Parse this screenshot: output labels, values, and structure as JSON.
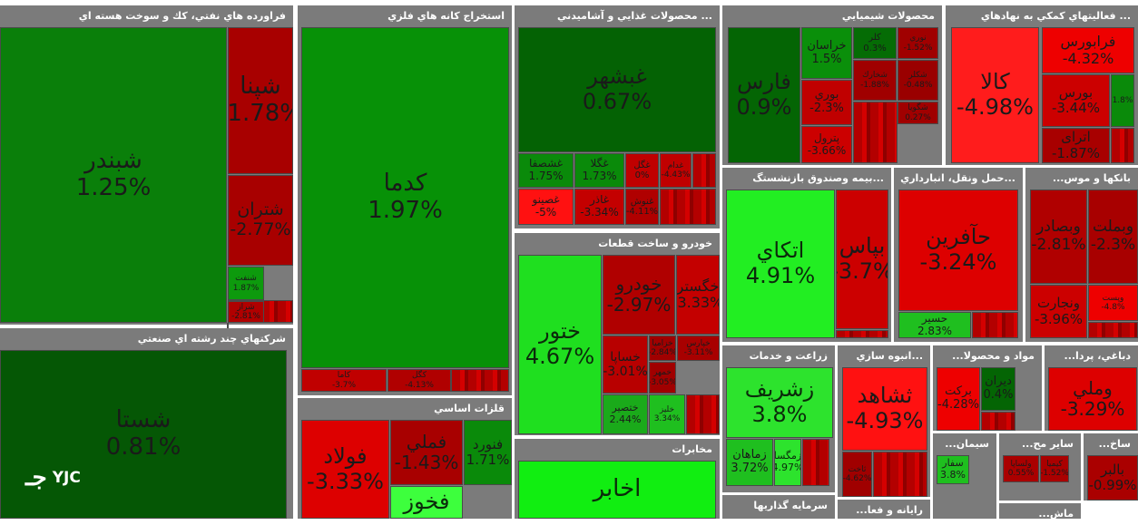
{
  "logo_text": "YJC",
  "logo_mark": "جـ",
  "chart_data": {
    "type": "treemap",
    "sectors": [
      {
        "name": "فراورده هاي نفتي، كك و سوخت هسته اي",
        "tiles": [
          {
            "symbol": "شبندر",
            "change": "1.25%",
            "color": "#0a7f0a"
          },
          {
            "symbol": "شپنا",
            "change": "-1.78%",
            "color": "#a80000"
          },
          {
            "symbol": "شتران",
            "change": "-2.77%",
            "color": "#a80000"
          },
          {
            "symbol": "شنفت",
            "change": "1.87%",
            "color": "#0d9a0d"
          },
          {
            "symbol": "شراز",
            "change": "-2.81%",
            "color": "#b00000"
          }
        ]
      },
      {
        "name": "استخراج كانه هاي فلزي",
        "tiles": [
          {
            "symbol": "كدما",
            "change": "1.97%",
            "color": "#079107"
          },
          {
            "symbol": "كاما",
            "change": "-3.7%",
            "color": "#c00000"
          },
          {
            "symbol": "كگل",
            "change": "-4.13%",
            "color": "#b00000"
          }
        ]
      },
      {
        "name": "... محصولات غذايي و آشاميدني",
        "tiles": [
          {
            "symbol": "غبشهر",
            "change": "0.67%",
            "color": "#046204"
          },
          {
            "symbol": "غشصفا",
            "change": "1.75%",
            "color": "#0a8a0a"
          },
          {
            "symbol": "غگلا",
            "change": "1.73%",
            "color": "#0a8a0a"
          },
          {
            "symbol": "غگل",
            "change": "0%",
            "color": "#c00000"
          },
          {
            "symbol": "غدام",
            "change": "-4.43%",
            "color": "#c00000"
          },
          {
            "symbol": "غصينو",
            "change": "-5%",
            "color": "#ff1111"
          },
          {
            "symbol": "غاذر",
            "change": "-3.34%",
            "color": "#c40000"
          },
          {
            "symbol": "غنوش",
            "change": "-4.11%",
            "color": "#b00000"
          }
        ]
      },
      {
        "name": "محصولات شيميايي",
        "tiles": [
          {
            "symbol": "فارس",
            "change": "0.9%",
            "color": "#046504"
          },
          {
            "symbol": "خراسان",
            "change": "1.5%",
            "color": "#0a8f0a"
          },
          {
            "symbol": "كلر",
            "change": "0.3%",
            "color": "#056c05"
          },
          {
            "symbol": "نوري",
            "change": "-1.52%",
            "color": "#a00000"
          },
          {
            "symbol": "بوري",
            "change": "-2.3%",
            "color": "#c00000"
          },
          {
            "symbol": "پترول",
            "change": "-3.66%",
            "color": "#cc0000"
          },
          {
            "symbol": "شخارك",
            "change": "-1.88%",
            "color": "#a00000"
          },
          {
            "symbol": "شكلر",
            "change": "-0.48%",
            "color": "#9a0000"
          },
          {
            "symbol": "شگويا",
            "change": "0.27%",
            "color": "#a00000"
          }
        ]
      },
      {
        "name": "... فعاليتهاي كمكي به نهادهاي",
        "tiles": [
          {
            "symbol": "كالا",
            "change": "-4.98%",
            "color": "#ff1c1c"
          },
          {
            "symbol": "فرابورس",
            "change": "-4.32%",
            "color": "#ee0000"
          },
          {
            "symbol": "بورس",
            "change": "-3.44%",
            "color": "#cc0000"
          },
          {
            "symbol": "اترای",
            "change": "-1.87%",
            "color": "#a80000"
          },
          {
            "symbol": "",
            "change": "1.8%",
            "color": "#0a8a0a"
          }
        ]
      },
      {
        "name": "...بيمه وصندوق بازنشستگ",
        "tiles": [
          {
            "symbol": "اتكاي",
            "change": "4.91%",
            "color": "#22ee22"
          },
          {
            "symbol": "بپاس",
            "change": "-3.7%",
            "color": "#cc0000"
          }
        ]
      },
      {
        "name": "...حمل ونقل، انبارداري",
        "tiles": [
          {
            "symbol": "حآفرين",
            "change": "-3.24%",
            "color": "#dd0000"
          },
          {
            "symbol": "حسير",
            "change": "2.83%",
            "color": "#1fbf1f"
          }
        ]
      },
      {
        "name": "بانكها و موس...",
        "tiles": [
          {
            "symbol": "وبصادر",
            "change": "-2.81%",
            "color": "#b00000"
          },
          {
            "symbol": "وبملت",
            "change": "-2.3%",
            "color": "#a80000"
          },
          {
            "symbol": "ونجارت",
            "change": "-3.96%",
            "color": "#cc0000"
          },
          {
            "symbol": "وپست",
            "change": "-4.8%",
            "color": "#ee0000"
          }
        ]
      },
      {
        "name": "خودرو و ساخت قطعات",
        "tiles": [
          {
            "symbol": "ختور",
            "change": "4.67%",
            "color": "#1fdf1f"
          },
          {
            "symbol": "خودرو",
            "change": "-2.97%",
            "color": "#b00000"
          },
          {
            "symbol": "خگستر",
            "change": "-3.33%",
            "color": "#c40000"
          },
          {
            "symbol": "خساپا",
            "change": "-3.01%",
            "color": "#b80000"
          },
          {
            "symbol": "خزامیا",
            "change": "-2.84%",
            "color": "#a00000"
          },
          {
            "symbol": "خپارس",
            "change": "-3.11%",
            "color": "#a80000"
          },
          {
            "symbol": "خمهر",
            "change": "-3.05%",
            "color": "#a00000"
          },
          {
            "symbol": "ختصير",
            "change": "2.44%",
            "color": "#1aaa1a"
          },
          {
            "symbol": "خلیز",
            "change": "3.34%",
            "color": "#1fbf1f"
          }
        ]
      },
      {
        "name": "قلزات اساسي",
        "tiles": [
          {
            "symbol": "فولاد",
            "change": "-3.33%",
            "color": "#dd0000"
          },
          {
            "symbol": "فملي",
            "change": "-1.43%",
            "color": "#a80000"
          },
          {
            "symbol": "فنورد",
            "change": "1.71%",
            "color": "#0a8a0a"
          },
          {
            "symbol": "فخوز",
            "change": "",
            "color": "#3dff3d"
          }
        ]
      },
      {
        "name": "شركتهاي چند رشته اي صنعتي",
        "tiles": [
          {
            "symbol": "شستا",
            "change": "0.81%",
            "color": "#055705"
          }
        ]
      },
      {
        "name": "مخابرات",
        "tiles": [
          {
            "symbol": "اخابر",
            "change": "",
            "color": "#11ee11"
          }
        ]
      },
      {
        "name": "زراعت و خدمات",
        "tiles": [
          {
            "symbol": "زشريف",
            "change": "3.8%",
            "color": "#2de32d"
          },
          {
            "symbol": "زماهان",
            "change": "3.72%",
            "color": "#1fbf1f"
          },
          {
            "symbol": "زمگسا",
            "change": "4.97%",
            "color": "#2de32d"
          }
        ]
      },
      {
        "name": "...انبوه سازي",
        "tiles": [
          {
            "symbol": "ثشاهد",
            "change": "-4.93%",
            "color": "#ff1111"
          },
          {
            "symbol": "ثاخت",
            "change": "-4.62%",
            "color": "#a00000"
          }
        ]
      },
      {
        "name": "مواد و محصولا...",
        "tiles": [
          {
            "symbol": "بركت",
            "change": "-4.28%",
            "color": "#ee0000"
          },
          {
            "symbol": "ديران",
            "change": "0.4%",
            "color": "#046504"
          }
        ]
      },
      {
        "name": "دباغي، پردا...",
        "tiles": [
          {
            "symbol": "وملي",
            "change": "-3.29%",
            "color": "#dd0000"
          }
        ]
      },
      {
        "name": "سيمان...",
        "tiles": [
          {
            "symbol": "سفار",
            "change": "3.8%",
            "color": "#1fbf1f"
          }
        ]
      },
      {
        "name": "ساير مح...",
        "tiles": [
          {
            "symbol": "ولساپا",
            "change": "0.55%",
            "color": "#aa0000"
          },
          {
            "symbol": "كيمیا",
            "change": "-1.52%",
            "color": "#aa0000"
          }
        ]
      },
      {
        "name": "ساخ...",
        "tiles": [
          {
            "symbol": "بالبر",
            "change": "-0.99%",
            "color": "#aa0000"
          }
        ]
      },
      {
        "name": "سرمايه گذاريها",
        "tiles": []
      },
      {
        "name": "رايانه و فعا...",
        "tiles": []
      },
      {
        "name": "ماش...",
        "tiles": []
      }
    ]
  }
}
